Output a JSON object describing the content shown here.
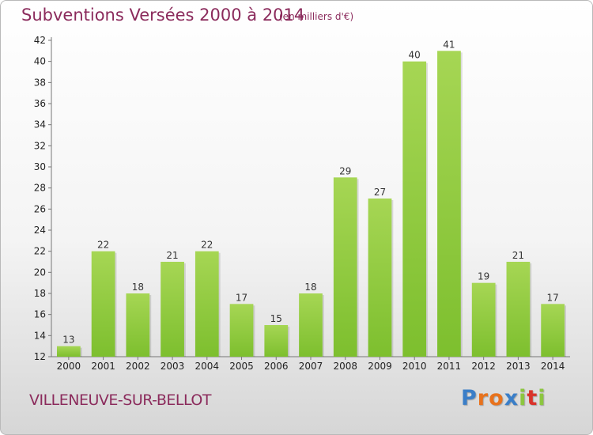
{
  "header": {
    "title": "Subventions Versées 2000 à 2014",
    "subtitle": "(en milliers d'€)"
  },
  "footer": {
    "commune": "VILLENEUVE-SUR-BELLOT",
    "logo": {
      "letters": [
        "P",
        "r",
        "o",
        "x",
        "i",
        "t",
        "i"
      ],
      "colors": [
        "#3a7ec8",
        "#e8721c",
        "#e8721c",
        "#3a7ec8",
        "#8cc63f",
        "#d9332b",
        "#8cc63f"
      ]
    }
  },
  "chart_data": {
    "type": "bar",
    "title": "Subventions Versées 2000 à 2014",
    "subtitle": "(en milliers d'€)",
    "categories": [
      "2000",
      "2001",
      "2002",
      "2003",
      "2004",
      "2005",
      "2006",
      "2007",
      "2008",
      "2009",
      "2010",
      "2011",
      "2012",
      "2013",
      "2014"
    ],
    "values": [
      13,
      22,
      18,
      21,
      22,
      17,
      15,
      18,
      29,
      27,
      40,
      41,
      19,
      21,
      17
    ],
    "ylim": [
      12,
      42
    ],
    "yticks": [
      12,
      14,
      16,
      18,
      20,
      22,
      24,
      26,
      28,
      30,
      32,
      34,
      36,
      38,
      40,
      42
    ],
    "grid": false,
    "bar_color": "#7dbf2e",
    "bar_color_light": "#a6d654",
    "data_labels": true
  }
}
